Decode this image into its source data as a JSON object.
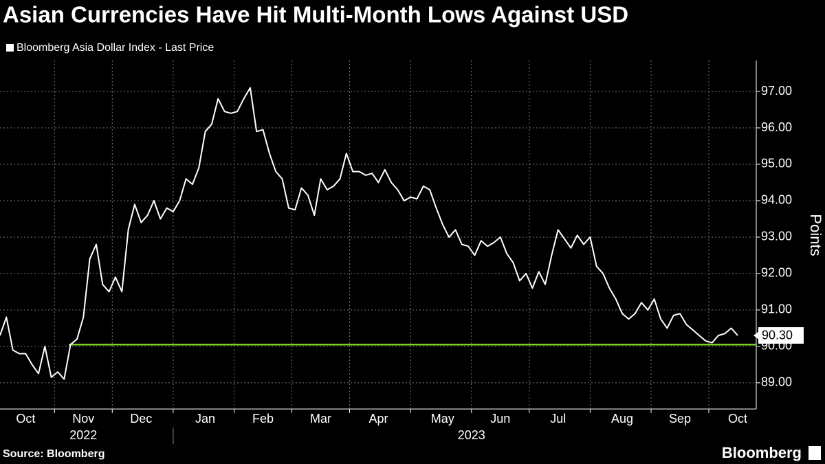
{
  "chart_data": {
    "type": "line",
    "title": "Asian Currencies Have Hit Multi-Month Lows Against USD",
    "series": [
      {
        "name": "Bloomberg Asia Dollar Index - Last Price",
        "color": "#ffffff",
        "values": [
          90.3,
          90.8,
          89.9,
          89.8,
          89.8,
          89.5,
          89.25,
          90.0,
          89.15,
          89.3,
          89.1,
          90.05,
          90.2,
          90.8,
          92.4,
          92.8,
          91.7,
          91.5,
          91.9,
          91.5,
          93.2,
          93.9,
          93.4,
          93.6,
          94.0,
          93.5,
          93.8,
          93.7,
          94.0,
          94.6,
          94.45,
          94.9,
          95.9,
          96.1,
          96.8,
          96.45,
          96.4,
          96.45,
          96.8,
          97.1,
          95.9,
          95.95,
          95.3,
          94.8,
          94.6,
          93.8,
          93.75,
          94.35,
          94.15,
          93.6,
          94.6,
          94.3,
          94.4,
          94.6,
          95.3,
          94.8,
          94.8,
          94.7,
          94.75,
          94.5,
          94.85,
          94.5,
          94.3,
          94.0,
          94.1,
          94.05,
          94.4,
          94.3,
          93.8,
          93.35,
          93.0,
          93.2,
          92.8,
          92.75,
          92.5,
          92.9,
          92.75,
          92.85,
          93.0,
          92.55,
          92.3,
          91.8,
          92.0,
          91.6,
          92.05,
          91.7,
          92.5,
          93.2,
          92.95,
          92.7,
          93.05,
          92.8,
          93.0,
          92.2,
          92.0,
          91.6,
          91.3,
          90.9,
          90.75,
          90.9,
          91.2,
          91.0,
          91.3,
          90.75,
          90.5,
          90.85,
          90.9,
          90.6,
          90.45,
          90.3,
          90.15,
          90.1,
          90.3,
          90.35,
          90.5,
          90.3
        ]
      }
    ],
    "last_value_label": "90.30",
    "categories": [
      null,
      null,
      null,
      null,
      "Oct",
      null,
      null,
      null,
      null,
      null,
      null,
      null,
      null,
      "Nov",
      null,
      null,
      null,
      null,
      null,
      null,
      null,
      null,
      "Dec",
      null,
      null,
      null,
      null,
      null,
      null,
      null,
      null,
      null,
      "Jan",
      null,
      null,
      null,
      null,
      null,
      null,
      null,
      null,
      "Feb",
      null,
      null,
      null,
      null,
      null,
      null,
      null,
      null,
      "Mar",
      null,
      null,
      null,
      null,
      null,
      null,
      null,
      null,
      "Apr",
      null,
      null,
      null,
      null,
      null,
      null,
      null,
      null,
      null,
      "May",
      null,
      null,
      null,
      null,
      null,
      null,
      null,
      null,
      "Jun",
      null,
      null,
      null,
      null,
      null,
      null,
      null,
      null,
      "Jul",
      null,
      null,
      null,
      null,
      null,
      null,
      null,
      null,
      null,
      "Aug",
      null,
      null,
      null,
      null,
      null,
      null,
      null,
      null,
      "Sep",
      null,
      null,
      null,
      null,
      null,
      null,
      null,
      null,
      "Oct"
    ],
    "x_groups": [
      {
        "label": "2022",
        "span": 3
      },
      {
        "label": "2023",
        "span": 10
      }
    ],
    "ylabel": "Points",
    "ylim": [
      88.28,
      97.85
    ],
    "yticks": [
      {
        "value": 89,
        "label": "89.00"
      },
      {
        "value": 90,
        "label": "90.00"
      },
      {
        "value": 91,
        "label": "91.00"
      },
      {
        "value": 92,
        "label": "92.00"
      },
      {
        "value": 93,
        "label": "93.00"
      },
      {
        "value": 94,
        "label": "94.00"
      },
      {
        "value": 95,
        "label": "95.00"
      },
      {
        "value": 96,
        "label": "96.00"
      },
      {
        "value": 97,
        "label": "97.00"
      }
    ],
    "reference_line": {
      "value": 90.05,
      "color": "#7ed321"
    },
    "grid": true,
    "source": "Source: Bloomberg",
    "brand": "Bloomberg"
  }
}
